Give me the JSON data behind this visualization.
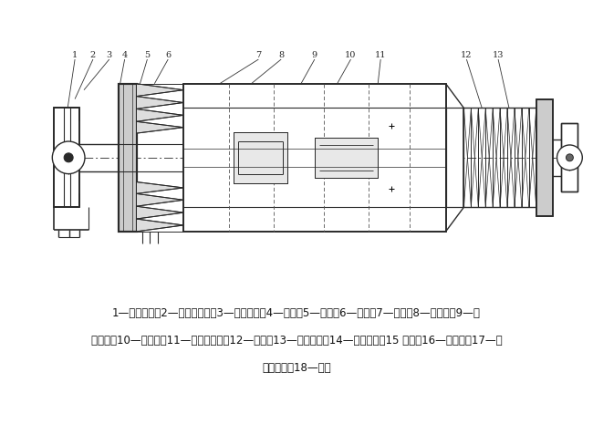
{
  "bg_color": "#ffffff",
  "line_color": "#2a2a2a",
  "fig_width": 6.5,
  "fig_height": 4.88,
  "caption_line1": "1—限位装置；2—防带杆装置；3—上端法兰；4—挡环；5—转环；6—芯杆；7—键条；8—加压台；9—导",
  "caption_line2": "向斜块；10—分水盘；11—下减震装置；12—方头；13—钗杆销轴；14—减震总成；15 一杆；16—中间杆；17—防",
  "caption_line3": "带杆托盘；18—扁头"
}
